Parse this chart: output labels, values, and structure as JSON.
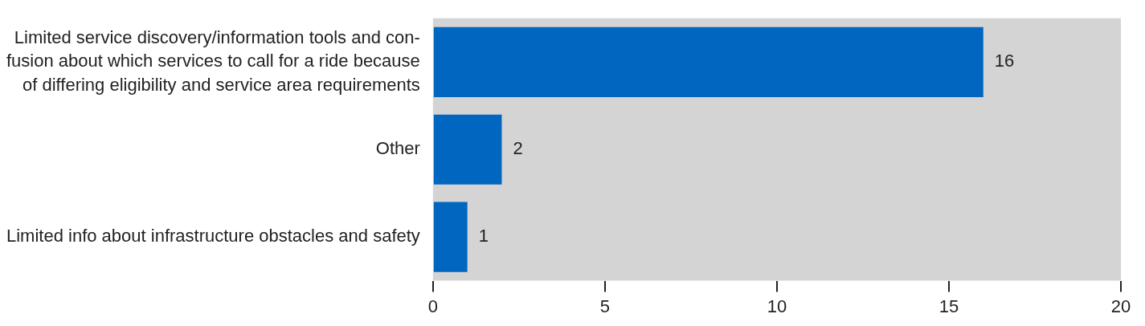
{
  "chart_data": {
    "type": "bar",
    "orientation": "horizontal",
    "categories": [
      "Limited service discovery/information tools and con-\nfusion about which services to call for a ride because\nof differing eligibility and service area requirements",
      "Other",
      "Limited info about infrastructure obstacles and safety"
    ],
    "values": [
      16,
      2,
      1
    ],
    "color": "#0066c0",
    "data_labels": true,
    "grid": false,
    "legend": false,
    "xlim": [
      0,
      20
    ],
    "xticks": [
      0,
      5,
      10,
      15,
      20
    ]
  }
}
